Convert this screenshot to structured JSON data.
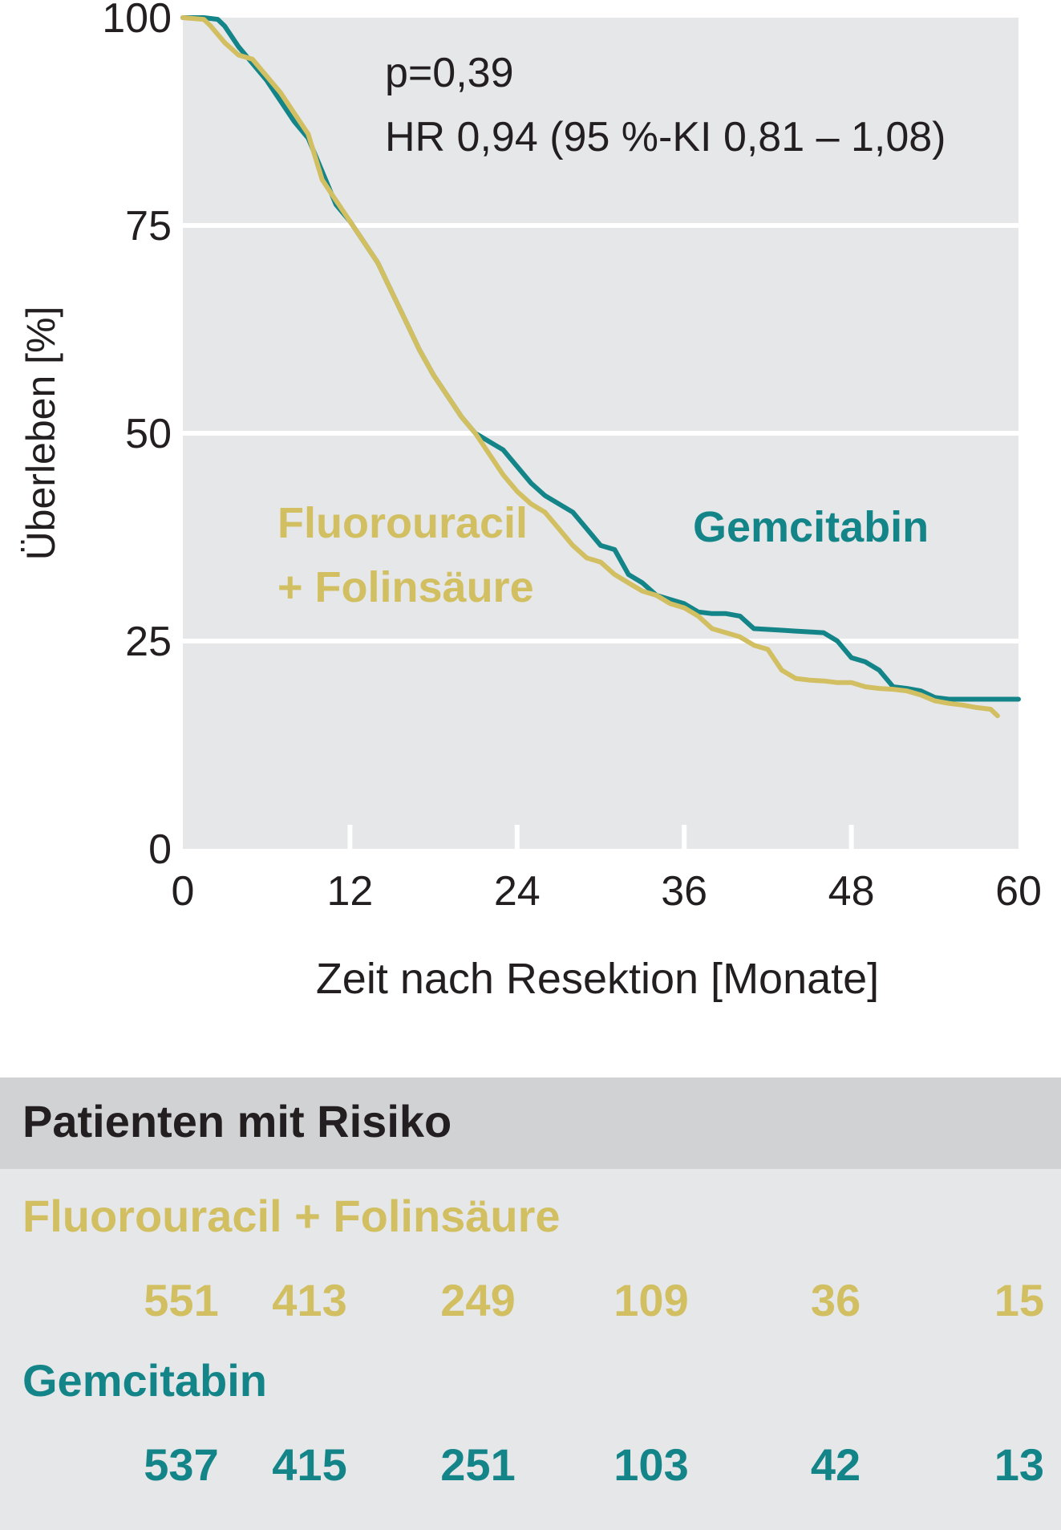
{
  "chart_data": {
    "type": "line",
    "annotation_p": "p=0,39",
    "annotation_hr": "HR 0,94 (95 %-KI 0,81 – 1,08)",
    "xlabel": "Zeit nach Resektion [Monate]",
    "ylabel": "Überleben [%]",
    "xlim": [
      0,
      60
    ],
    "ylim": [
      0,
      100
    ],
    "x_ticks": [
      "0",
      "12",
      "24",
      "36",
      "48",
      "60"
    ],
    "y_ticks": [
      "0",
      "25",
      "50",
      "75",
      "100"
    ],
    "grid": "horizontal",
    "series": [
      {
        "name": "Fluorouracil + Folinsäure",
        "label_line1": "Fluorouracil",
        "label_line2": "+ Folinsäure",
        "color": "#d1bf62",
        "points": [
          [
            0,
            100
          ],
          [
            1.5,
            99.8
          ],
          [
            2,
            99
          ],
          [
            3,
            97
          ],
          [
            4,
            95.5
          ],
          [
            5,
            95
          ],
          [
            6,
            93
          ],
          [
            7,
            91
          ],
          [
            8,
            88.5
          ],
          [
            9,
            86
          ],
          [
            10,
            80.5
          ],
          [
            11,
            78
          ],
          [
            12,
            75.5
          ],
          [
            13,
            73
          ],
          [
            14,
            70.5
          ],
          [
            15,
            67
          ],
          [
            16,
            63.5
          ],
          [
            17,
            60
          ],
          [
            18,
            57
          ],
          [
            19,
            54.5
          ],
          [
            20,
            52
          ],
          [
            21,
            50
          ],
          [
            22,
            47.5
          ],
          [
            23,
            45
          ],
          [
            24,
            43
          ],
          [
            25,
            41.5
          ],
          [
            26,
            40.5
          ],
          [
            27,
            38.5
          ],
          [
            28,
            36.5
          ],
          [
            29,
            35
          ],
          [
            30,
            34.5
          ],
          [
            31,
            33
          ],
          [
            32,
            32
          ],
          [
            33,
            31
          ],
          [
            34,
            30.5
          ],
          [
            35,
            29.5
          ],
          [
            36,
            29
          ],
          [
            37,
            28
          ],
          [
            38,
            26.5
          ],
          [
            39,
            26
          ],
          [
            40,
            25.5
          ],
          [
            41,
            24.5
          ],
          [
            42,
            24
          ],
          [
            43,
            21.5
          ],
          [
            44,
            20.5
          ],
          [
            45,
            20.3
          ],
          [
            46,
            20.2
          ],
          [
            47,
            20
          ],
          [
            48,
            20
          ],
          [
            49,
            19.5
          ],
          [
            50,
            19.3
          ],
          [
            51,
            19.2
          ],
          [
            52,
            19
          ],
          [
            53,
            18.5
          ],
          [
            54,
            17.8
          ],
          [
            55,
            17.5
          ],
          [
            56,
            17.3
          ],
          [
            57,
            17
          ],
          [
            58,
            16.8
          ],
          [
            58.5,
            16
          ]
        ]
      },
      {
        "name": "Gemcitabin",
        "label_line1": "Gemcitabin",
        "color": "#138589",
        "points": [
          [
            0,
            100
          ],
          [
            1.5,
            100
          ],
          [
            2.5,
            99.8
          ],
          [
            3,
            99
          ],
          [
            4,
            96.5
          ],
          [
            5,
            94.5
          ],
          [
            6,
            92.5
          ],
          [
            7,
            90
          ],
          [
            8,
            87.5
          ],
          [
            9,
            85.5
          ],
          [
            10,
            81.5
          ],
          [
            11,
            77.5
          ],
          [
            12,
            75.5
          ],
          [
            13,
            73
          ],
          [
            14,
            70.5
          ],
          [
            15,
            67
          ],
          [
            16,
            63.5
          ],
          [
            17,
            60
          ],
          [
            18,
            57
          ],
          [
            19,
            54.5
          ],
          [
            20,
            52
          ],
          [
            21,
            50
          ],
          [
            22,
            49
          ],
          [
            23,
            48
          ],
          [
            24,
            46
          ],
          [
            25,
            44
          ],
          [
            26,
            42.5
          ],
          [
            27,
            41.5
          ],
          [
            28,
            40.5
          ],
          [
            29,
            38.5
          ],
          [
            30,
            36.5
          ],
          [
            31,
            36
          ],
          [
            32,
            33
          ],
          [
            33,
            32
          ],
          [
            34,
            30.5
          ],
          [
            35,
            30
          ],
          [
            36,
            29.5
          ],
          [
            37,
            28.5
          ],
          [
            38,
            28.3
          ],
          [
            39,
            28.3
          ],
          [
            40,
            28
          ],
          [
            41,
            26.5
          ],
          [
            42,
            26.4
          ],
          [
            43,
            26.3
          ],
          [
            44,
            26.2
          ],
          [
            45,
            26.1
          ],
          [
            46,
            26
          ],
          [
            47,
            25
          ],
          [
            48,
            23
          ],
          [
            49,
            22.5
          ],
          [
            50,
            21.5
          ],
          [
            51,
            19.5
          ],
          [
            52,
            19.3
          ],
          [
            53,
            19
          ],
          [
            54,
            18.2
          ],
          [
            55,
            18
          ],
          [
            56,
            18
          ],
          [
            57,
            18
          ],
          [
            58,
            18
          ],
          [
            59,
            18
          ],
          [
            60,
            18
          ]
        ]
      }
    ]
  },
  "risk_table": {
    "title": "Patienten mit Risiko",
    "groups": [
      {
        "name": "Fluorouracil + Folinsäure",
        "color": "#d1bf62",
        "values": [
          "551",
          "413",
          "249",
          "109",
          "36",
          "15"
        ]
      },
      {
        "name": "Gemcitabin",
        "color": "#138589",
        "values": [
          "537",
          "415",
          "251",
          "103",
          "42",
          "13"
        ]
      }
    ]
  }
}
